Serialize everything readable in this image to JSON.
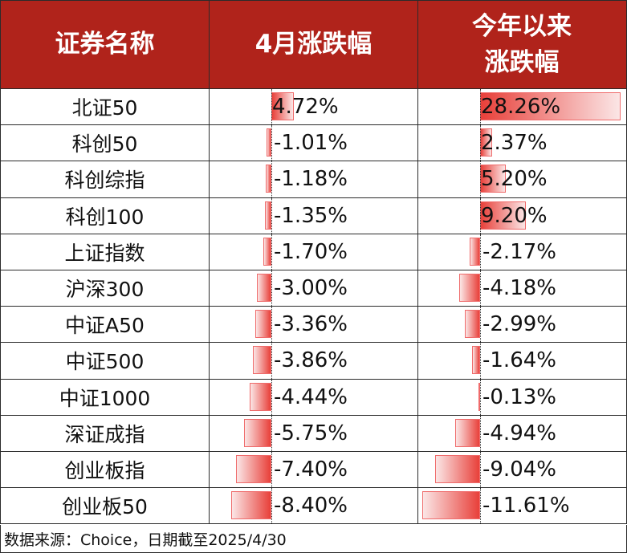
{
  "header": {
    "col1": "证券名称",
    "col2": "4月涨跌幅",
    "col3_line1": "今年以来",
    "col3_line2": "涨跌幅"
  },
  "colors": {
    "header_bg": "#b0231b",
    "bar_red": "#e8403a",
    "bar_border": "#ef6b6b"
  },
  "rows": [
    {
      "name": "北证50",
      "april": "4.72%",
      "ytd": "28.26%",
      "april_v": 4.72,
      "ytd_v": 28.26
    },
    {
      "name": "科创50",
      "april": "-1.01%",
      "ytd": "2.37%",
      "april_v": -1.01,
      "ytd_v": 2.37
    },
    {
      "name": "科创综指",
      "april": "-1.18%",
      "ytd": "5.20%",
      "april_v": -1.18,
      "ytd_v": 5.2
    },
    {
      "name": "科创100",
      "april": "-1.35%",
      "ytd": "9.20%",
      "april_v": -1.35,
      "ytd_v": 9.2
    },
    {
      "name": "上证指数",
      "april": "-1.70%",
      "ytd": "-2.17%",
      "april_v": -1.7,
      "ytd_v": -2.17
    },
    {
      "name": "沪深300",
      "april": "-3.00%",
      "ytd": "-4.18%",
      "april_v": -3.0,
      "ytd_v": -4.18
    },
    {
      "name": "中证A50",
      "april": "-3.36%",
      "ytd": "-2.99%",
      "april_v": -3.36,
      "ytd_v": -2.99
    },
    {
      "name": "中证500",
      "april": "-3.86%",
      "ytd": "-1.64%",
      "april_v": -3.86,
      "ytd_v": -1.64
    },
    {
      "name": "中证1000",
      "april": "-4.44%",
      "ytd": "-0.13%",
      "april_v": -4.44,
      "ytd_v": -0.13
    },
    {
      "name": "深证成指",
      "april": "-5.75%",
      "ytd": "-4.94%",
      "april_v": -5.75,
      "ytd_v": -4.94
    },
    {
      "name": "创业板指",
      "april": "-7.40%",
      "ytd": "-9.04%",
      "april_v": -7.4,
      "ytd_v": -9.04
    },
    {
      "name": "创业板50",
      "april": "-8.40%",
      "ytd": "-11.61%",
      "april_v": -8.4,
      "ytd_v": -11.61
    }
  ],
  "footer": {
    "source": "数据来源：Choice，日期截至2025/4/30"
  }
}
